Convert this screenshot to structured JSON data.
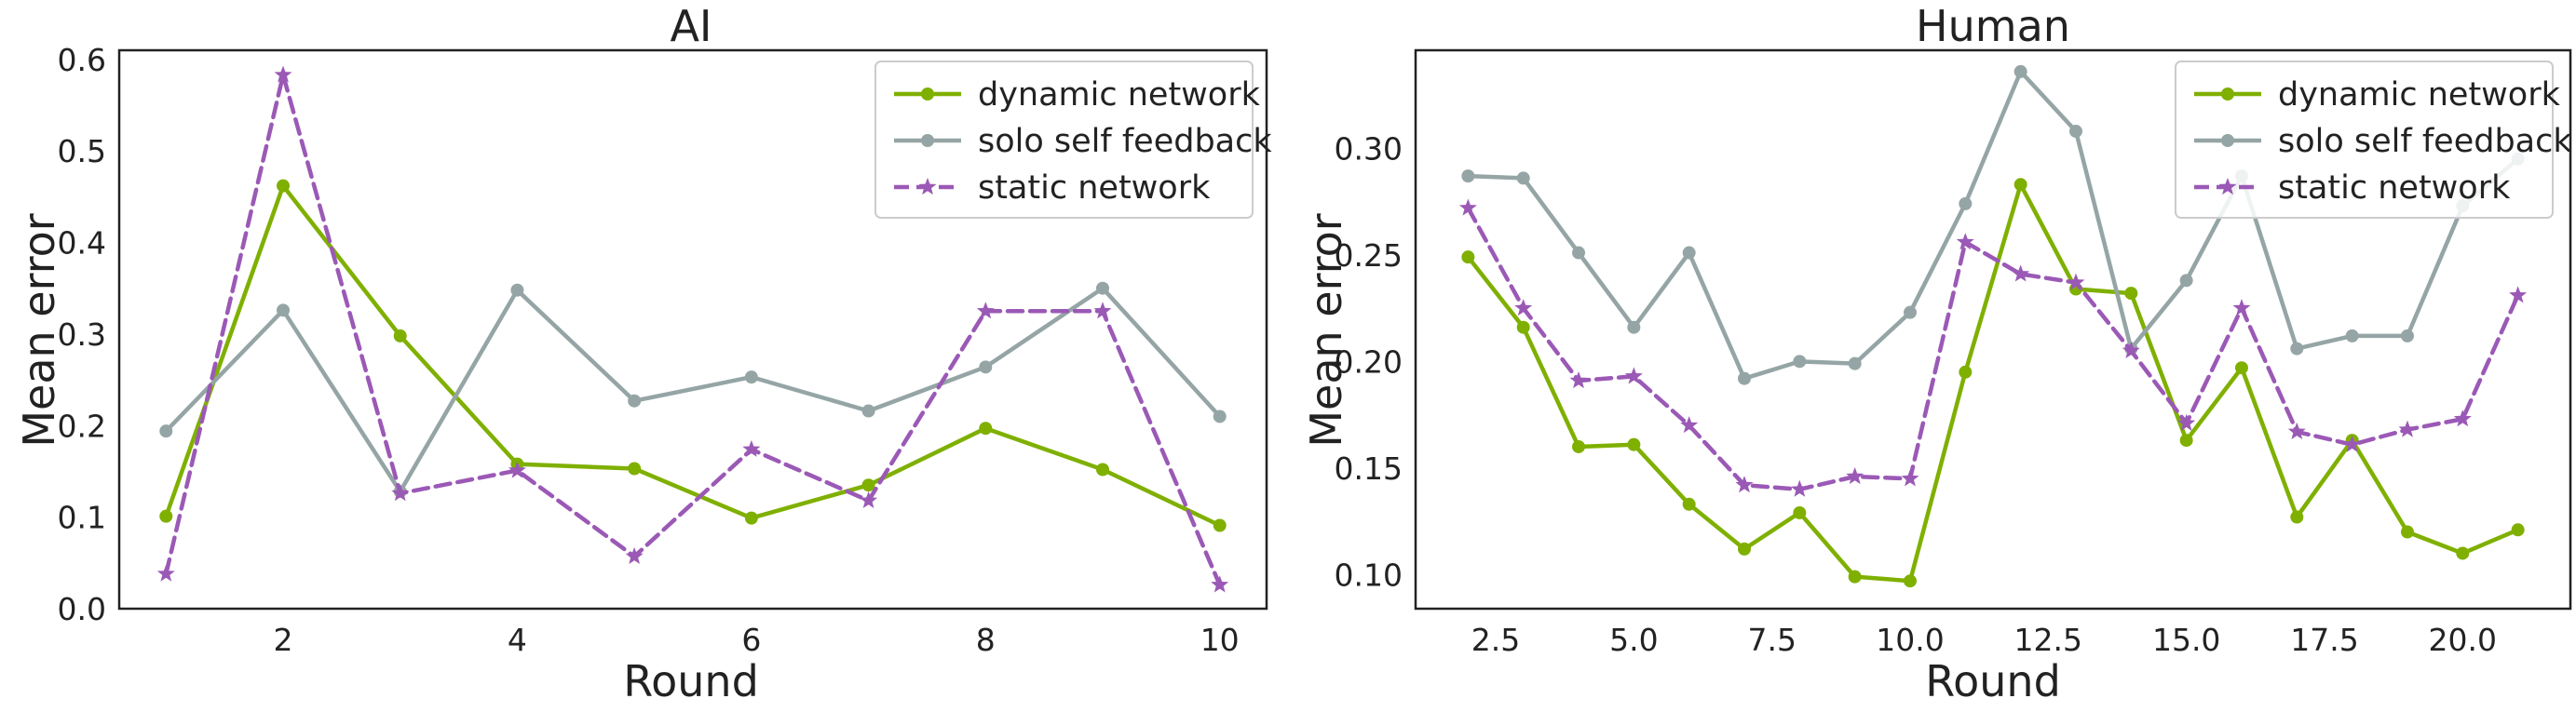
{
  "chart_data": [
    {
      "type": "line",
      "title": "AI",
      "xlabel": "Round",
      "ylabel": "Mean error",
      "xlim": [
        0.6,
        10.4
      ],
      "ylim": [
        0.0,
        0.61
      ],
      "xticks": [
        2,
        4,
        6,
        8,
        10
      ],
      "xtick_labels": [
        "2",
        "4",
        "6",
        "8",
        "10"
      ],
      "yticks": [
        0.0,
        0.1,
        0.2,
        0.3,
        0.4,
        0.5,
        0.6
      ],
      "ytick_labels": [
        "0.0",
        "0.1",
        "0.2",
        "0.3",
        "0.4",
        "0.5",
        "0.6"
      ],
      "grid": false,
      "legend": "top-right",
      "x": [
        1,
        2,
        3,
        4,
        5,
        6,
        7,
        8,
        9,
        10
      ],
      "series": [
        {
          "name": "dynamic network",
          "color": "#7fb000",
          "style": "solid",
          "marker": "circle",
          "values": [
            0.101,
            0.462,
            0.298,
            0.158,
            0.153,
            0.099,
            0.135,
            0.197,
            0.152,
            0.091
          ]
        },
        {
          "name": "solo self feedback",
          "color": "#95a5a6",
          "style": "solid",
          "marker": "circle",
          "values": [
            0.194,
            0.326,
            0.128,
            0.348,
            0.227,
            0.253,
            0.216,
            0.264,
            0.35,
            0.21
          ]
        },
        {
          "name": "static network",
          "color": "#9b59b6",
          "style": "dashed",
          "marker": "star",
          "values": [
            0.038,
            0.583,
            0.126,
            0.151,
            0.057,
            0.174,
            0.118,
            0.325,
            0.325,
            0.026
          ]
        }
      ]
    },
    {
      "type": "line",
      "title": "Human",
      "xlabel": "Round",
      "ylabel": "Mean error",
      "xlim": [
        1.05,
        21.95
      ],
      "ylim": [
        0.084,
        0.346
      ],
      "xticks": [
        2.5,
        5.0,
        7.5,
        10.0,
        12.5,
        15.0,
        17.5,
        20.0
      ],
      "xtick_labels": [
        "2.5",
        "5.0",
        "7.5",
        "10.0",
        "12.5",
        "15.0",
        "17.5",
        "20.0"
      ],
      "yticks": [
        0.1,
        0.15,
        0.2,
        0.25,
        0.3
      ],
      "ytick_labels": [
        "0.10",
        "0.15",
        "0.20",
        "0.25",
        "0.30"
      ],
      "grid": false,
      "legend": "top-right",
      "x": [
        2,
        3,
        4,
        5,
        6,
        7,
        8,
        9,
        10,
        11,
        12,
        13,
        14,
        15,
        16,
        17,
        18,
        19,
        20,
        21
      ],
      "series": [
        {
          "name": "dynamic network",
          "color": "#7fb000",
          "style": "solid",
          "marker": "circle",
          "values": [
            0.249,
            0.216,
            0.16,
            0.161,
            0.133,
            0.112,
            0.129,
            0.099,
            0.097,
            0.195,
            0.283,
            0.234,
            0.232,
            0.163,
            0.197,
            0.127,
            0.163,
            0.12,
            0.11,
            0.121
          ]
        },
        {
          "name": "solo self feedback",
          "color": "#95a5a6",
          "style": "solid",
          "marker": "circle",
          "values": [
            0.287,
            0.286,
            0.251,
            0.216,
            0.251,
            0.192,
            0.2,
            0.199,
            0.223,
            0.274,
            0.336,
            0.308,
            0.206,
            0.238,
            0.287,
            0.206,
            0.212,
            0.212,
            0.273,
            0.295
          ]
        },
        {
          "name": "static network",
          "color": "#9b59b6",
          "style": "dashed",
          "marker": "star",
          "values": [
            0.272,
            0.225,
            0.191,
            0.193,
            0.17,
            0.142,
            0.14,
            0.146,
            0.145,
            0.256,
            0.241,
            0.237,
            0.205,
            0.171,
            0.225,
            0.167,
            0.161,
            0.168,
            0.173,
            0.231
          ]
        }
      ]
    }
  ]
}
